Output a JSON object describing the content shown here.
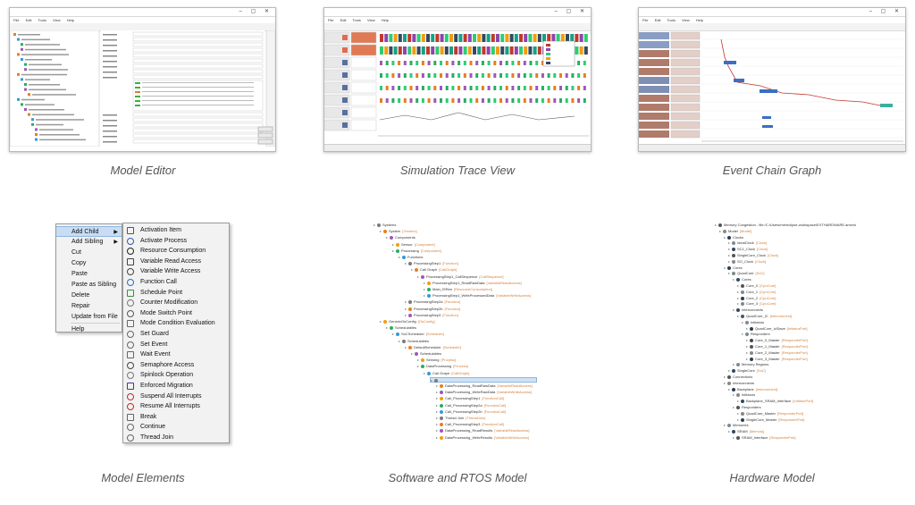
{
  "captions": {
    "model_editor": "Model Editor",
    "simulation_trace": "Simulation Trace View",
    "event_chain": "Event Chain Graph",
    "model_elements": "Model Elements",
    "software_rtos": "Software and RTOS Model",
    "hardware_model": "Hardware Model"
  },
  "window_menus": [
    "File",
    "Edit",
    "Tools",
    "View",
    "Help"
  ],
  "context_menu": {
    "items": [
      {
        "label": "Add Child",
        "selected": true,
        "submenu": true
      },
      {
        "label": "Add Sibling",
        "submenu": true
      },
      {
        "label": "Cut"
      },
      {
        "label": "Copy"
      },
      {
        "label": "Paste"
      },
      {
        "label": "Paste as Sibling"
      },
      {
        "label": "Delete"
      },
      {
        "label": "Repair"
      },
      {
        "label": "Update from File"
      },
      {
        "label": "Help"
      }
    ],
    "submenu_items": [
      {
        "label": "Activation Item",
        "icon": "activation-icon"
      },
      {
        "label": "Activate Process",
        "icon": "activate-process-icon"
      },
      {
        "label": "Resource Consumption",
        "icon": "resource-consumption-icon"
      },
      {
        "label": "Variable Read Access",
        "icon": "variable-read-icon"
      },
      {
        "label": "Variable Write Access",
        "icon": "variable-write-icon"
      },
      {
        "label": "Function Call",
        "icon": "function-call-icon"
      },
      {
        "label": "Schedule Point",
        "icon": "schedule-point-icon"
      },
      {
        "label": "Counter Modification",
        "icon": "counter-modification-icon"
      },
      {
        "label": "Mode Switch Point",
        "icon": "mode-switch-icon"
      },
      {
        "label": "Mode Condition Evaluation",
        "icon": "mode-condition-icon"
      },
      {
        "label": "Set Guard",
        "icon": "set-guard-icon"
      },
      {
        "label": "Set Event",
        "icon": "set-event-icon"
      },
      {
        "label": "Wait Event",
        "icon": "wait-event-icon"
      },
      {
        "label": "Semaphore Access",
        "icon": "semaphore-icon"
      },
      {
        "label": "Spinlock Operation",
        "icon": "spinlock-icon"
      },
      {
        "label": "Enforced Migration",
        "icon": "migration-icon"
      },
      {
        "label": "Suspend All Interrupts",
        "icon": "suspend-interrupts-icon"
      },
      {
        "label": "Resume All Interrupts",
        "icon": "resume-interrupts-icon"
      },
      {
        "label": "Break",
        "icon": "break-icon"
      },
      {
        "label": "Continue",
        "icon": "continue-icon"
      },
      {
        "label": "Thread Join",
        "icon": "thread-join-icon"
      }
    ]
  },
  "software_tree": [
    {
      "label": "Systems",
      "type": "",
      "depth": 0
    },
    {
      "label": "System",
      "type": "[Generic]",
      "depth": 1
    },
    {
      "label": "Components",
      "type": "",
      "depth": 2
    },
    {
      "label": "Sensor",
      "type": "[Component]",
      "depth": 3
    },
    {
      "label": "Processing",
      "type": "[Component]",
      "depth": 3
    },
    {
      "label": "Functions",
      "type": "",
      "depth": 4
    },
    {
      "label": "ProcessingStep1",
      "type": "[Function]",
      "depth": 5
    },
    {
      "label": "Call Graph",
      "type": "[CallGraph]",
      "depth": 6
    },
    {
      "label": "ProcessingStep1_CallSequence",
      "type": "[CallSequence]",
      "depth": 7
    },
    {
      "label": "ProcessingStep1_ReadRawData",
      "type": "[VariableReadAccess]",
      "depth": 8
    },
    {
      "label": "Main_ISRen",
      "type": "[ResourceConsumption]",
      "depth": 8
    },
    {
      "label": "ProcessingStep1_WriteProcessedData",
      "type": "[VariableWriteAccess]",
      "depth": 8
    },
    {
      "label": "ProcessingStep2a",
      "type": "[Function]",
      "depth": 5
    },
    {
      "label": "ProcessingStep2b",
      "type": "[Function]",
      "depth": 5
    },
    {
      "label": "ProcessingStep3",
      "type": "[Function]",
      "depth": 5
    },
    {
      "label": "GenericOsConfig",
      "type": "[OsConfig]",
      "depth": 1
    },
    {
      "label": "Schedulables",
      "type": "",
      "depth": 2
    },
    {
      "label": "SoCScheduler",
      "type": "[Scheduler]",
      "depth": 3
    },
    {
      "label": "Schedulables",
      "type": "",
      "depth": 4
    },
    {
      "label": "DefaultScheduler",
      "type": "[Scheduler]",
      "depth": 5
    },
    {
      "label": "Schedulables",
      "type": "",
      "depth": 6
    },
    {
      "label": "Sensing",
      "type": "[Process]",
      "depth": 7
    },
    {
      "label": "DataProcessing",
      "type": "[Process]",
      "depth": 7
    },
    {
      "label": "Call Graph",
      "type": "[CallGraph]",
      "depth": 8
    },
    {
      "label": "",
      "type": "",
      "depth": 9,
      "selected": true
    },
    {
      "label": "DataProcessing_ReadRawData",
      "type": "[VariableReadAccess]",
      "depth": 10
    },
    {
      "label": "DataProcessing_WriteRawData",
      "type": "[VariableWriteAccess]",
      "depth": 10
    },
    {
      "label": "Call_ProcessingStep1",
      "type": "[FunctionCall]",
      "depth": 10
    },
    {
      "label": "Call_ProcessingStep2a",
      "type": "[FunctionCall]",
      "depth": 10
    },
    {
      "label": "Call_ProcessingStep2b",
      "type": "[FunctionCall]",
      "depth": 10
    },
    {
      "label": "Thread Join",
      "type": "[ThreadJoin]",
      "depth": 10
    },
    {
      "label": "Call_ProcessingStep3",
      "type": "[FunctionCall]",
      "depth": 10
    },
    {
      "label": "DataProcessing_ReadResults",
      "type": "[VariableReadAccess]",
      "depth": 10
    },
    {
      "label": "DataProcessing_WriteResults",
      "type": "[VariableWriteAccess]",
      "depth": 10
    }
  ],
  "hardware_tree": [
    {
      "label": "Memory Congestion - file:/C:/Users/me/eclipse-workspace/EXTHARDWARE.amxmi",
      "type": "",
      "depth": 0
    },
    {
      "label": "Model",
      "type": "[Model]",
      "depth": 1
    },
    {
      "label": "Clocks",
      "type": "",
      "depth": 2
    },
    {
      "label": "IdealClock",
      "type": "[Clock]",
      "depth": 3
    },
    {
      "label": "SC1_Clock",
      "type": "[Clock]",
      "depth": 3
    },
    {
      "label": "SingleCore_Clock",
      "type": "[Clock]",
      "depth": 3
    },
    {
      "label": "SO_Clock",
      "type": "[Clock]",
      "depth": 3
    },
    {
      "label": "Cores",
      "type": "",
      "depth": 2
    },
    {
      "label": "QuadCore",
      "type": "[SoC]",
      "depth": 3
    },
    {
      "label": "Cores",
      "type": "",
      "depth": 4
    },
    {
      "label": "Core_0",
      "type": "[CpuCore]",
      "depth": 5
    },
    {
      "label": "Core_1",
      "type": "[CpuCore]",
      "depth": 5
    },
    {
      "label": "Core_2",
      "type": "[CpuCore]",
      "depth": 5
    },
    {
      "label": "Core_3",
      "type": "[CpuCore]",
      "depth": 5
    },
    {
      "label": "Interconnects",
      "type": "",
      "depth": 4
    },
    {
      "label": "QuadCore_IC",
      "type": "[Interconnect]",
      "depth": 5
    },
    {
      "label": "Initiators",
      "type": "",
      "depth": 6
    },
    {
      "label": "QuadCore_IcSlave",
      "type": "[InitiatorPort]",
      "depth": 7
    },
    {
      "label": "Responders",
      "type": "",
      "depth": 6
    },
    {
      "label": "Core_0_Master",
      "type": "[ResponderPort]",
      "depth": 7
    },
    {
      "label": "Core_1_Master",
      "type": "[ResponderPort]",
      "depth": 7
    },
    {
      "label": "Core_2_Master",
      "type": "[ResponderPort]",
      "depth": 7
    },
    {
      "label": "Core_3_Master",
      "type": "[ResponderPort]",
      "depth": 7
    },
    {
      "label": "Memory Regions",
      "type": "",
      "depth": 4
    },
    {
      "label": "SingleCore",
      "type": "[SoC]",
      "depth": 3
    },
    {
      "label": "Connections",
      "type": "",
      "depth": 2
    },
    {
      "label": "Interconnects",
      "type": "",
      "depth": 2
    },
    {
      "label": "Backplane",
      "type": "[Interconnect]",
      "depth": 3
    },
    {
      "label": "Initiators",
      "type": "",
      "depth": 4
    },
    {
      "label": "Backplane_SRAM_Interface",
      "type": "[InitiatorPort]",
      "depth": 5
    },
    {
      "label": "Responders",
      "type": "",
      "depth": 4
    },
    {
      "label": "QuadCore_Master",
      "type": "[ResponderPort]",
      "depth": 5
    },
    {
      "label": "SingleCore_Master",
      "type": "[ResponderPort]",
      "depth": 5
    },
    {
      "label": "Memories",
      "type": "",
      "depth": 2
    },
    {
      "label": "SRAM",
      "type": "[Memory]",
      "depth": 3
    },
    {
      "label": "SRAM_Interface",
      "type": "[ResponderPort]",
      "depth": 4
    }
  ],
  "colors": {
    "caption": "#555555",
    "menu_highlight": "#c8ddf3",
    "tree_type": "#d47f3a",
    "selection": "#cfe3f7"
  }
}
